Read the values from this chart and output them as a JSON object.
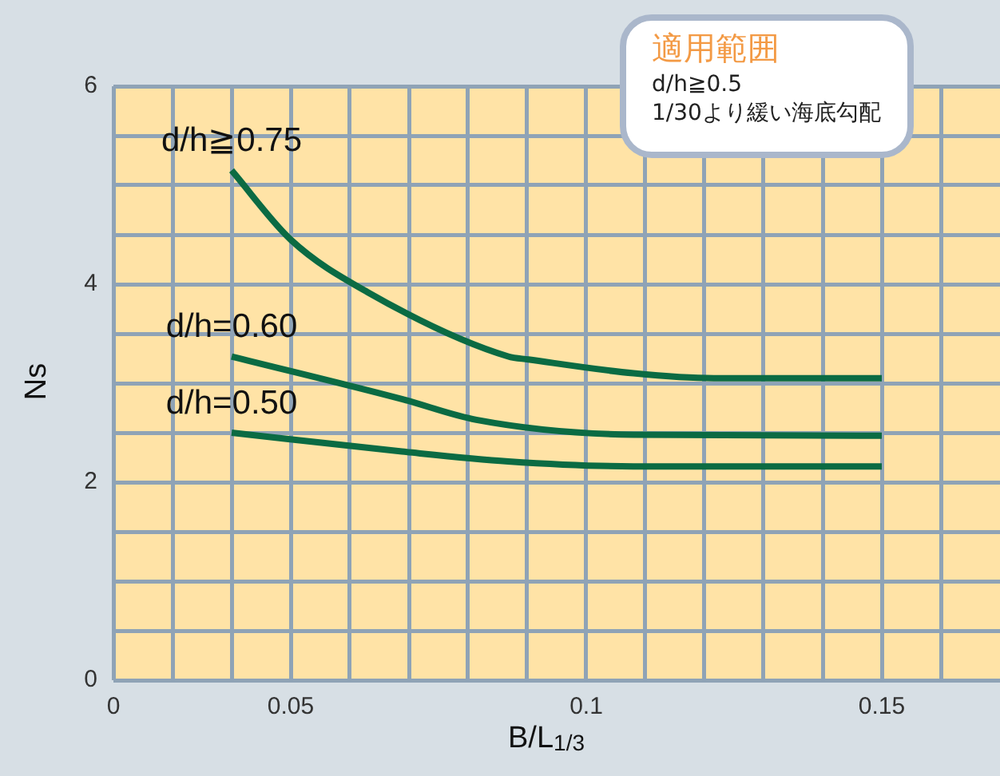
{
  "chart_data": {
    "type": "line",
    "xlabel": "B/L$_{1/3}$",
    "ylabel": "Ns",
    "annotations": [
      "適用範囲",
      "d/h≧0.5",
      "1/30より緩い海底勾配"
    ],
    "xlim": [
      0.02,
      0.17
    ],
    "xticks": [
      {
        "value": 0.02,
        "label": "0"
      },
      {
        "value": 0.03,
        "label": null
      },
      {
        "value": 0.04,
        "label": null
      },
      0.05,
      {
        "value": 0.06,
        "label": null
      },
      {
        "value": 0.07,
        "label": null
      },
      {
        "value": 0.08,
        "label": null
      },
      {
        "value": 0.09,
        "label": null
      },
      0.1,
      {
        "value": 0.11,
        "label": null
      },
      {
        "value": 0.12,
        "label": null
      },
      {
        "value": 0.13,
        "label": null
      },
      {
        "value": 0.14,
        "label": null
      },
      0.15,
      {
        "value": 0.16,
        "label": null
      }
    ],
    "ylim": [
      0,
      6
    ],
    "yticks": [
      0,
      {
        "value": 0.5,
        "label": null
      },
      {
        "value": 1,
        "label": null
      },
      {
        "value": 1.5,
        "label": null
      },
      2,
      {
        "value": 2.5,
        "label": null
      },
      {
        "value": 3,
        "label": null
      },
      {
        "value": 3.5,
        "label": null
      },
      4,
      {
        "value": 4.5,
        "label": null
      },
      {
        "value": 5,
        "label": null
      },
      {
        "value": 5.5,
        "label": null
      },
      6
    ],
    "grid": true,
    "marker": "none",
    "line_style": "solid",
    "series": [
      {
        "name": "d/h≧0.75",
        "color": "#0b6b43",
        "x": [
          0.04,
          0.05,
          0.063,
          0.0868,
          0.0902,
          0.108,
          0.1216,
          0.15
        ],
        "values": [
          5.15,
          4.45,
          3.92,
          3.27,
          3.24,
          3.1,
          3.05,
          3.05
        ]
      },
      {
        "name": "d/h=0.60",
        "color": "#0b6b43",
        "x": [
          0.04,
          0.0688,
          0.0814,
          0.108,
          0.15
        ],
        "values": [
          3.27,
          2.84,
          2.63,
          2.48,
          2.47
        ]
      },
      {
        "name": "d/h=0.50",
        "color": "#0b6b43",
        "x": [
          0.04,
          0.0688,
          0.0868,
          0.108,
          0.15
        ],
        "values": [
          2.5,
          2.31,
          2.21,
          2.16,
          2.16
        ]
      }
    ]
  }
}
